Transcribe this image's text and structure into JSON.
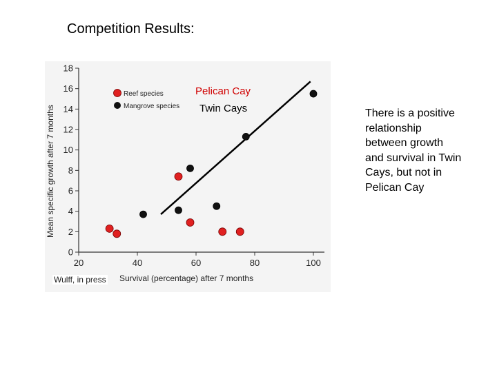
{
  "slide": {
    "title": "Competition Results:",
    "note": "There is a positive relationship between growth and survival in Twin Cays, but not in Pelican Cay"
  },
  "chart_data": {
    "type": "scatter",
    "xlabel": "Survival (percentage) after 7 months",
    "ylabel": "Mean specific growth after 7 months",
    "xlim": [
      20,
      100
    ],
    "ylim": [
      0,
      18
    ],
    "x_ticks": [
      "20",
      "40",
      "60",
      "80",
      "100"
    ],
    "y_ticks": [
      "0",
      "2",
      "4",
      "6",
      "8",
      "10",
      "12",
      "14",
      "16",
      "18"
    ],
    "grid": false,
    "legend_position": "top-left",
    "source": "Wulff, in press",
    "annotations": [
      "Pelican Cay",
      "Twin Cays"
    ],
    "series": [
      {
        "name": "Reef species",
        "color": "#e02020",
        "points": [
          [
            30.5,
            2.3
          ],
          [
            33,
            1.8
          ],
          [
            54,
            7.4
          ],
          [
            58,
            2.9
          ],
          [
            69,
            2.0
          ],
          [
            75,
            2.0
          ]
        ]
      },
      {
        "name": "Mangrove species",
        "color": "#111111",
        "points": [
          [
            42,
            3.7
          ],
          [
            54,
            4.1
          ],
          [
            58,
            8.2
          ],
          [
            67,
            4.5
          ],
          [
            77,
            11.3
          ],
          [
            100,
            15.5
          ]
        ]
      }
    ],
    "trendline": {
      "series": "Mangrove species",
      "from": [
        48,
        3.7
      ],
      "to": [
        99,
        16.7
      ]
    }
  }
}
